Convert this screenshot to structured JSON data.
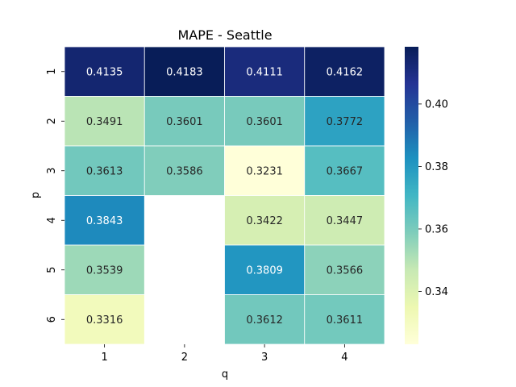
{
  "chart_data": {
    "type": "heatmap",
    "title": "MAPE - Seattle",
    "xlabel": "q",
    "ylabel": "p",
    "x_categories": [
      "1",
      "2",
      "3",
      "4"
    ],
    "y_categories": [
      "1",
      "2",
      "3",
      "4",
      "5",
      "6"
    ],
    "values": [
      [
        0.4135,
        0.4183,
        0.4111,
        0.4162
      ],
      [
        0.3491,
        0.3601,
        0.3601,
        0.3772
      ],
      [
        0.3613,
        0.3586,
        0.3231,
        0.3667
      ],
      [
        0.3843,
        null,
        0.3422,
        0.3447
      ],
      [
        0.3539,
        null,
        0.3809,
        0.3566
      ],
      [
        0.3316,
        null,
        0.3612,
        0.3611
      ]
    ],
    "cell_labels": [
      [
        "0.4135",
        "0.4183",
        "0.4111",
        "0.4162"
      ],
      [
        "0.3491",
        "0.3601",
        "0.3601",
        "0.3772"
      ],
      [
        "0.3613",
        "0.3586",
        "0.3231",
        "0.3667"
      ],
      [
        "0.3843",
        "",
        "0.3422",
        "0.3447"
      ],
      [
        "0.3539",
        "",
        "0.3809",
        "0.3566"
      ],
      [
        "0.3316",
        "",
        "0.3612",
        "0.3611"
      ]
    ],
    "colormap": "YlGnBu",
    "vmin": 0.3231,
    "vmax": 0.4183,
    "colorbar_ticks": [
      0.34,
      0.36,
      0.38,
      0.4
    ],
    "colorbar_tick_labels": [
      "0.34",
      "0.36",
      "0.38",
      "0.40"
    ],
    "legend_placement": "right",
    "grid": false
  }
}
